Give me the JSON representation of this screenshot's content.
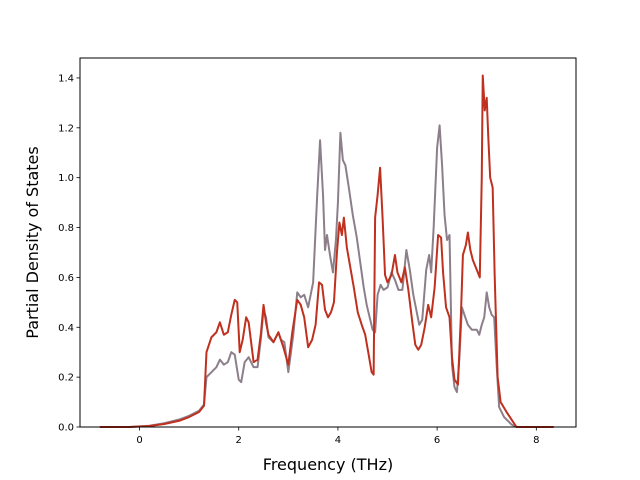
{
  "chart_data": {
    "type": "line",
    "title": "",
    "xlabel": "Frequency (THz)",
    "ylabel": "Partial Density of States",
    "xlim": [
      -1.2,
      8.8
    ],
    "ylim": [
      0,
      1.48
    ],
    "xticks": [
      0,
      2,
      4,
      6,
      8
    ],
    "yticks": [
      0.0,
      0.2,
      0.4,
      0.6,
      0.8,
      1.0,
      1.2,
      1.4
    ],
    "xtick_labels": [
      "0",
      "2",
      "4",
      "6",
      "8"
    ],
    "ytick_labels": [
      "0.0",
      "0.2",
      "0.4",
      "0.6",
      "0.8",
      "1.0",
      "1.2",
      "1.4"
    ],
    "grid": false,
    "legend": "none",
    "series": [
      {
        "color": "#8c7f8a",
        "points": [
          [
            -0.8,
            0
          ],
          [
            -0.2,
            0
          ],
          [
            0.2,
            0.005
          ],
          [
            0.5,
            0.015
          ],
          [
            0.8,
            0.03
          ],
          [
            1.0,
            0.045
          ],
          [
            1.2,
            0.065
          ],
          [
            1.3,
            0.09
          ],
          [
            1.35,
            0.2
          ],
          [
            1.45,
            0.22
          ],
          [
            1.55,
            0.24
          ],
          [
            1.62,
            0.27
          ],
          [
            1.7,
            0.25
          ],
          [
            1.78,
            0.26
          ],
          [
            1.85,
            0.3
          ],
          [
            1.92,
            0.29
          ],
          [
            2.0,
            0.19
          ],
          [
            2.05,
            0.18
          ],
          [
            2.12,
            0.26
          ],
          [
            2.2,
            0.28
          ],
          [
            2.3,
            0.24
          ],
          [
            2.38,
            0.24
          ],
          [
            2.45,
            0.36
          ],
          [
            2.5,
            0.47
          ],
          [
            2.55,
            0.44
          ],
          [
            2.6,
            0.36
          ],
          [
            2.7,
            0.34
          ],
          [
            2.8,
            0.38
          ],
          [
            2.85,
            0.35
          ],
          [
            2.92,
            0.34
          ],
          [
            3.0,
            0.22
          ],
          [
            3.1,
            0.37
          ],
          [
            3.18,
            0.54
          ],
          [
            3.25,
            0.52
          ],
          [
            3.32,
            0.53
          ],
          [
            3.4,
            0.48
          ],
          [
            3.5,
            0.58
          ],
          [
            3.58,
            0.92
          ],
          [
            3.64,
            1.15
          ],
          [
            3.7,
            0.93
          ],
          [
            3.74,
            0.71
          ],
          [
            3.78,
            0.77
          ],
          [
            3.84,
            0.69
          ],
          [
            3.9,
            0.62
          ],
          [
            3.96,
            0.75
          ],
          [
            4.0,
            0.9
          ],
          [
            4.05,
            1.18
          ],
          [
            4.1,
            1.07
          ],
          [
            4.15,
            1.05
          ],
          [
            4.22,
            0.96
          ],
          [
            4.3,
            0.85
          ],
          [
            4.38,
            0.76
          ],
          [
            4.45,
            0.66
          ],
          [
            4.52,
            0.56
          ],
          [
            4.58,
            0.49
          ],
          [
            4.64,
            0.44
          ],
          [
            4.7,
            0.39
          ],
          [
            4.75,
            0.38
          ],
          [
            4.8,
            0.53
          ],
          [
            4.86,
            0.57
          ],
          [
            4.92,
            0.55
          ],
          [
            5.0,
            0.56
          ],
          [
            5.08,
            0.62
          ],
          [
            5.15,
            0.59
          ],
          [
            5.22,
            0.55
          ],
          [
            5.3,
            0.55
          ],
          [
            5.38,
            0.71
          ],
          [
            5.45,
            0.63
          ],
          [
            5.52,
            0.53
          ],
          [
            5.58,
            0.47
          ],
          [
            5.64,
            0.41
          ],
          [
            5.7,
            0.43
          ],
          [
            5.78,
            0.63
          ],
          [
            5.84,
            0.69
          ],
          [
            5.88,
            0.62
          ],
          [
            5.93,
            0.8
          ],
          [
            6.0,
            1.12
          ],
          [
            6.05,
            1.21
          ],
          [
            6.1,
            1.05
          ],
          [
            6.15,
            0.85
          ],
          [
            6.2,
            0.75
          ],
          [
            6.25,
            0.77
          ],
          [
            6.3,
            0.25
          ],
          [
            6.35,
            0.16
          ],
          [
            6.4,
            0.14
          ],
          [
            6.45,
            0.28
          ],
          [
            6.5,
            0.48
          ],
          [
            6.55,
            0.45
          ],
          [
            6.62,
            0.41
          ],
          [
            6.7,
            0.39
          ],
          [
            6.8,
            0.39
          ],
          [
            6.85,
            0.37
          ],
          [
            6.9,
            0.41
          ],
          [
            6.95,
            0.44
          ],
          [
            7.0,
            0.54
          ],
          [
            7.05,
            0.48
          ],
          [
            7.1,
            0.45
          ],
          [
            7.15,
            0.44
          ],
          [
            7.2,
            0.25
          ],
          [
            7.25,
            0.08
          ],
          [
            7.35,
            0.04
          ],
          [
            7.5,
            0.01
          ],
          [
            7.6,
            0.0
          ],
          [
            8.35,
            0.0
          ]
        ]
      },
      {
        "color": "#c0301e",
        "points": [
          [
            -0.8,
            0
          ],
          [
            -0.2,
            0
          ],
          [
            0.2,
            0.004
          ],
          [
            0.5,
            0.012
          ],
          [
            0.8,
            0.025
          ],
          [
            1.0,
            0.04
          ],
          [
            1.2,
            0.06
          ],
          [
            1.3,
            0.085
          ],
          [
            1.35,
            0.3
          ],
          [
            1.45,
            0.36
          ],
          [
            1.55,
            0.38
          ],
          [
            1.62,
            0.42
          ],
          [
            1.7,
            0.37
          ],
          [
            1.78,
            0.38
          ],
          [
            1.85,
            0.45
          ],
          [
            1.92,
            0.51
          ],
          [
            1.97,
            0.5
          ],
          [
            2.02,
            0.3
          ],
          [
            2.08,
            0.35
          ],
          [
            2.15,
            0.44
          ],
          [
            2.2,
            0.42
          ],
          [
            2.3,
            0.26
          ],
          [
            2.38,
            0.27
          ],
          [
            2.45,
            0.38
          ],
          [
            2.5,
            0.49
          ],
          [
            2.55,
            0.42
          ],
          [
            2.6,
            0.37
          ],
          [
            2.7,
            0.34
          ],
          [
            2.8,
            0.38
          ],
          [
            2.9,
            0.32
          ],
          [
            3.0,
            0.25
          ],
          [
            3.08,
            0.38
          ],
          [
            3.18,
            0.51
          ],
          [
            3.25,
            0.49
          ],
          [
            3.32,
            0.44
          ],
          [
            3.4,
            0.32
          ],
          [
            3.48,
            0.35
          ],
          [
            3.55,
            0.41
          ],
          [
            3.62,
            0.58
          ],
          [
            3.68,
            0.57
          ],
          [
            3.74,
            0.47
          ],
          [
            3.8,
            0.44
          ],
          [
            3.86,
            0.46
          ],
          [
            3.92,
            0.5
          ],
          [
            3.98,
            0.7
          ],
          [
            4.03,
            0.82
          ],
          [
            4.08,
            0.77
          ],
          [
            4.12,
            0.84
          ],
          [
            4.18,
            0.72
          ],
          [
            4.25,
            0.64
          ],
          [
            4.32,
            0.56
          ],
          [
            4.4,
            0.46
          ],
          [
            4.48,
            0.41
          ],
          [
            4.55,
            0.37
          ],
          [
            4.62,
            0.29
          ],
          [
            4.68,
            0.22
          ],
          [
            4.72,
            0.21
          ],
          [
            4.75,
            0.84
          ],
          [
            4.8,
            0.93
          ],
          [
            4.85,
            1.04
          ],
          [
            4.9,
            0.84
          ],
          [
            4.95,
            0.61
          ],
          [
            5.0,
            0.58
          ],
          [
            5.08,
            0.61
          ],
          [
            5.15,
            0.69
          ],
          [
            5.2,
            0.62
          ],
          [
            5.28,
            0.58
          ],
          [
            5.35,
            0.64
          ],
          [
            5.42,
            0.55
          ],
          [
            5.5,
            0.42
          ],
          [
            5.56,
            0.33
          ],
          [
            5.62,
            0.31
          ],
          [
            5.68,
            0.33
          ],
          [
            5.75,
            0.4
          ],
          [
            5.82,
            0.49
          ],
          [
            5.88,
            0.44
          ],
          [
            5.95,
            0.56
          ],
          [
            6.02,
            0.77
          ],
          [
            6.08,
            0.76
          ],
          [
            6.12,
            0.62
          ],
          [
            6.18,
            0.48
          ],
          [
            6.25,
            0.44
          ],
          [
            6.3,
            0.28
          ],
          [
            6.35,
            0.19
          ],
          [
            6.42,
            0.17
          ],
          [
            6.48,
            0.45
          ],
          [
            6.52,
            0.69
          ],
          [
            6.58,
            0.73
          ],
          [
            6.62,
            0.78
          ],
          [
            6.67,
            0.71
          ],
          [
            6.72,
            0.67
          ],
          [
            6.8,
            0.63
          ],
          [
            6.86,
            0.6
          ],
          [
            6.9,
            1.0
          ],
          [
            6.92,
            1.41
          ],
          [
            6.96,
            1.27
          ],
          [
            7.0,
            1.32
          ],
          [
            7.03,
            1.17
          ],
          [
            7.07,
            1.0
          ],
          [
            7.12,
            0.96
          ],
          [
            7.16,
            0.61
          ],
          [
            7.22,
            0.2
          ],
          [
            7.28,
            0.1
          ],
          [
            7.4,
            0.06
          ],
          [
            7.5,
            0.03
          ],
          [
            7.6,
            0.0
          ],
          [
            8.35,
            0.0
          ]
        ]
      }
    ]
  }
}
